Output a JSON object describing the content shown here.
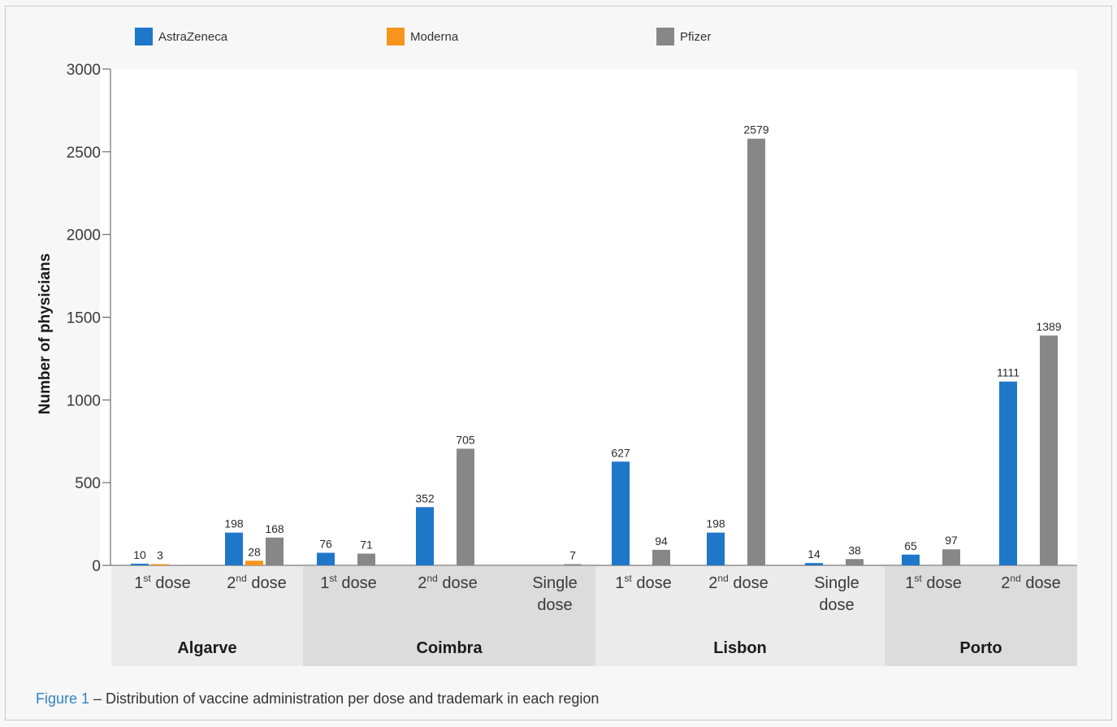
{
  "colors": {
    "AstraZeneca": "#1f77c9",
    "Moderna": "#f7941d",
    "Pfizer": "#878787",
    "group_band_light": "#ebebeb",
    "group_band_dark": "#dcdcdc",
    "plot_bg": "#ffffff"
  },
  "caption": {
    "figure_label": "Figure 1",
    "text": " – Distribution of vaccine administration per dose and trademark in each region"
  },
  "chart_data": {
    "type": "bar",
    "ylabel": "Number of physicians",
    "ylim": [
      0,
      3000
    ],
    "yticks": [
      0,
      500,
      1000,
      1500,
      2000,
      2500,
      3000
    ],
    "legend": {
      "placement": "top",
      "entries": [
        "AstraZeneca",
        "Moderna",
        "Pfizer"
      ]
    },
    "groups": [
      {
        "region": "Algarve",
        "categories": [
          {
            "label": [
              "1st dose"
            ],
            "values": {
              "AstraZeneca": 10,
              "Moderna": 3,
              "Pfizer": null
            }
          },
          {
            "label": [
              "2nd dose"
            ],
            "values": {
              "AstraZeneca": 198,
              "Moderna": 28,
              "Pfizer": 168
            }
          }
        ]
      },
      {
        "region": "Coimbra",
        "categories": [
          {
            "label": [
              "1st dose"
            ],
            "values": {
              "AstraZeneca": 76,
              "Moderna": null,
              "Pfizer": 71
            }
          },
          {
            "label": [
              "2nd dose"
            ],
            "values": {
              "AstraZeneca": 352,
              "Moderna": null,
              "Pfizer": 705
            }
          },
          {
            "label": [
              "Single",
              "dose"
            ],
            "values": {
              "AstraZeneca": null,
              "Moderna": null,
              "Pfizer": 7
            }
          }
        ]
      },
      {
        "region": "Lisbon",
        "categories": [
          {
            "label": [
              "1st dose"
            ],
            "values": {
              "AstraZeneca": 627,
              "Moderna": null,
              "Pfizer": 94
            }
          },
          {
            "label": [
              "2nd dose"
            ],
            "values": {
              "AstraZeneca": 198,
              "Moderna": null,
              "Pfizer": 2579
            }
          },
          {
            "label": [
              "Single",
              "dose"
            ],
            "values": {
              "AstraZeneca": 14,
              "Moderna": null,
              "Pfizer": 38
            }
          }
        ]
      },
      {
        "region": "Porto",
        "categories": [
          {
            "label": [
              "1st dose"
            ],
            "values": {
              "AstraZeneca": 65,
              "Moderna": null,
              "Pfizer": 97
            }
          },
          {
            "label": [
              "2nd dose"
            ],
            "values": {
              "AstraZeneca": 1111,
              "Moderna": null,
              "Pfizer": 1389
            }
          }
        ]
      }
    ]
  }
}
